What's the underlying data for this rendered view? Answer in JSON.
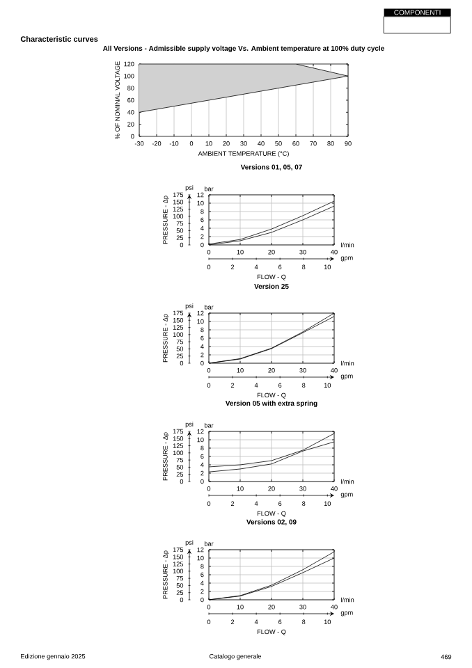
{
  "chart_data": [
    {
      "type": "line",
      "title": "All Versions - Admissible supply voltage Vs. Ambient temperature at 100% duty cycle",
      "xlabel": "AMBIENT TEMPERATURE (°C)",
      "ylabel": "% OF NOMINAL VOLTAGE",
      "xlim": [
        -30,
        90
      ],
      "ylim": [
        0,
        120
      ],
      "xticks": [
        -30,
        -20,
        -10,
        0,
        10,
        20,
        30,
        40,
        50,
        60,
        70,
        80,
        90
      ],
      "yticks": [
        0,
        20,
        40,
        60,
        80,
        100,
        120
      ],
      "grid": "x",
      "x": [
        -30,
        60,
        90
      ],
      "series": [
        {
          "color": "#000000",
          "values": [
            40,
            85,
            100
          ],
          "lower": [
            40,
            85,
            100
          ],
          "upper": [
            120,
            120,
            100
          ]
        },
        {
          "color": "#000000",
          "values": [
            120,
            120,
            100
          ]
        }
      ],
      "annotations": [
        "COMPONENTI",
        "Characteristic curves"
      ]
    },
    {
      "type": "line",
      "title": "Versions 01, 05, 07",
      "xlabel": "FLOW - Q",
      "y2label": "PRESSURE - Δp",
      "xlim": [
        0,
        40
      ],
      "ylim": [
        0,
        12
      ],
      "xticks": [
        0,
        10,
        20,
        30,
        40
      ],
      "yticks": [
        0,
        2,
        4,
        6,
        8,
        10,
        12
      ],
      "y2lim": [
        0,
        175
      ],
      "y2ticks": [
        0,
        25,
        50,
        75,
        100,
        125,
        150,
        175
      ],
      "x2lim": [
        0,
        10.57
      ],
      "x2ticks": [
        0,
        2,
        4,
        6,
        8,
        10
      ],
      "grid": true,
      "x": [
        0,
        10,
        20,
        30,
        40
      ],
      "series": [
        {
          "color": "#000000",
          "values": [
            0.2,
            1.3,
            3.8,
            7,
            10.5
          ]
        },
        {
          "color": "#000000",
          "values": [
            0,
            1,
            3,
            6,
            9.3
          ]
        }
      ],
      "annotations": [
        "bar",
        "psi",
        "l/min",
        "gpm"
      ]
    },
    {
      "type": "line",
      "title": "Version 25",
      "xlabel": "FLOW - Q",
      "y2label": "PRESSURE - Δp",
      "xlim": [
        0,
        40
      ],
      "ylim": [
        0,
        12
      ],
      "xticks": [
        0,
        10,
        20,
        30,
        40
      ],
      "yticks": [
        0,
        2,
        4,
        6,
        8,
        10,
        12
      ],
      "y2lim": [
        0,
        175
      ],
      "y2ticks": [
        0,
        25,
        50,
        75,
        100,
        125,
        150,
        175
      ],
      "x2lim": [
        0,
        10.57
      ],
      "x2ticks": [
        0,
        2,
        4,
        6,
        8,
        10
      ],
      "grid": true,
      "x": [
        0,
        10,
        20,
        30,
        40
      ],
      "series": [
        {
          "color": "#000000",
          "values": [
            0,
            1.1,
            3.6,
            7.5,
            12
          ]
        },
        {
          "color": "#000000",
          "values": [
            0,
            1,
            3.5,
            7.3,
            11.2
          ]
        }
      ],
      "annotations": [
        "bar",
        "psi",
        "l/min",
        "gpm"
      ]
    },
    {
      "type": "line",
      "title": "Version 05 with extra spring",
      "xlabel": "FLOW - Q",
      "y2label": "PRESSURE - Δp",
      "xlim": [
        0,
        40
      ],
      "ylim": [
        0,
        12
      ],
      "xticks": [
        0,
        10,
        20,
        30,
        40
      ],
      "yticks": [
        0,
        2,
        4,
        6,
        8,
        10,
        12
      ],
      "y2lim": [
        0,
        175
      ],
      "y2ticks": [
        0,
        25,
        50,
        75,
        100,
        125,
        150,
        175
      ],
      "x2lim": [
        0,
        10.57
      ],
      "x2ticks": [
        0,
        2,
        4,
        6,
        8,
        10
      ],
      "grid": true,
      "x": [
        0,
        10,
        20,
        30,
        40
      ],
      "series": [
        {
          "color": "#000000",
          "values": [
            3.5,
            4,
            5,
            7.5,
            11.5
          ]
        },
        {
          "color": "#000000",
          "values": [
            2.3,
            3,
            4.2,
            7.3,
            9.5
          ]
        }
      ],
      "annotations": [
        "bar",
        "psi",
        "l/min",
        "gpm"
      ]
    },
    {
      "type": "line",
      "title": "Versions 02, 09",
      "xlabel": "FLOW - Q",
      "y2label": "PRESSURE - Δp",
      "xlim": [
        0,
        40
      ],
      "ylim": [
        0,
        12
      ],
      "xticks": [
        0,
        10,
        20,
        30,
        40
      ],
      "yticks": [
        0,
        2,
        4,
        6,
        8,
        10,
        12
      ],
      "y2lim": [
        0,
        175
      ],
      "y2ticks": [
        0,
        25,
        50,
        75,
        100,
        125,
        150,
        175
      ],
      "x2lim": [
        0,
        10.57
      ],
      "x2ticks": [
        0,
        2,
        4,
        6,
        8,
        10
      ],
      "grid": true,
      "x": [
        0,
        10,
        20,
        30,
        40
      ],
      "series": [
        {
          "color": "#000000",
          "values": [
            0,
            1,
            3.5,
            7.2,
            11.5
          ]
        },
        {
          "color": "#000000",
          "values": [
            0,
            0.9,
            3.2,
            6.5,
            10
          ]
        }
      ],
      "annotations": [
        "bar",
        "psi",
        "l/min",
        "gpm",
        "Edizione gennaio 2025",
        "Catalogo generale",
        "469"
      ]
    }
  ]
}
